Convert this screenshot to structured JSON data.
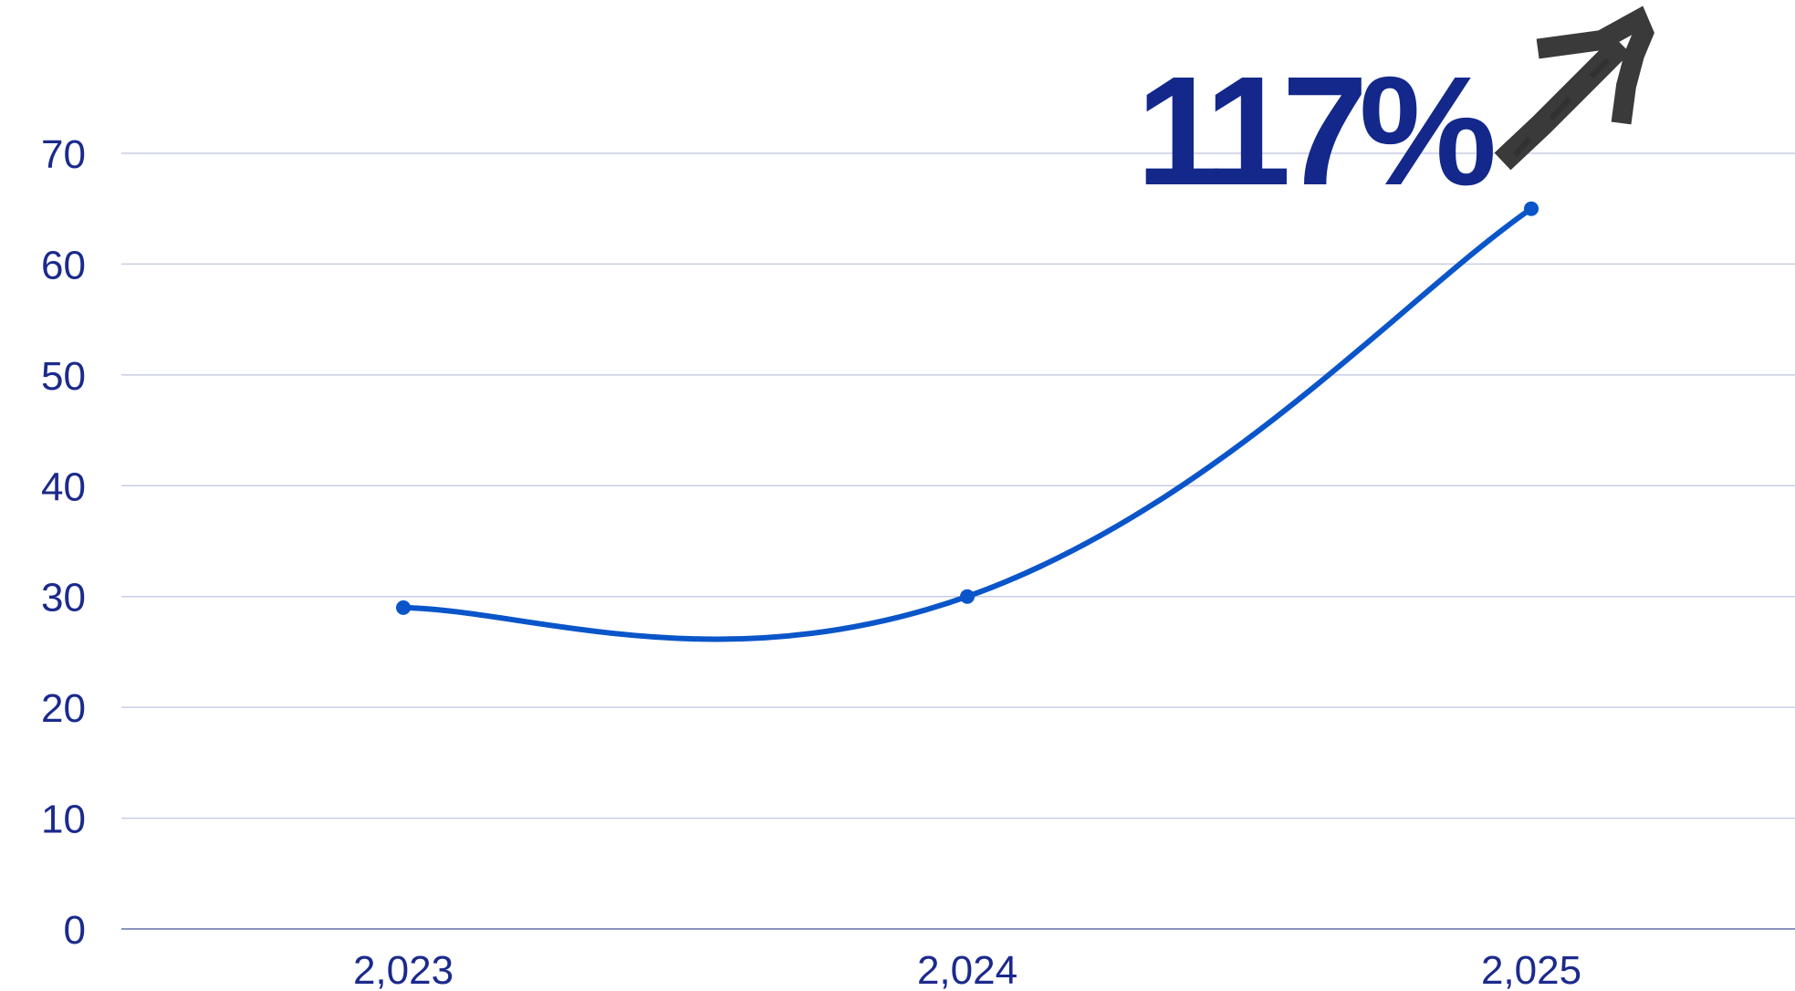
{
  "colors": {
    "line": "#0a55c9",
    "text": "#1b2a8c",
    "callout": "#13288a",
    "grid": "#c9cde4",
    "axis": "#8a93c0",
    "arrow": "#3a3a3a"
  },
  "icons": {
    "trend_arrow": "hand-drawn-arrow-up-right-icon"
  },
  "chart_data": {
    "type": "line",
    "categories": [
      "2,023",
      "2,024",
      "2,025"
    ],
    "series": [
      {
        "values": [
          29,
          30,
          65
        ]
      }
    ],
    "y_ticks": [
      "0",
      "10",
      "20",
      "30",
      "40",
      "50",
      "60",
      "70"
    ],
    "ylim": [
      0,
      70
    ],
    "grid": true,
    "smooth": true,
    "annotation": "117%"
  }
}
